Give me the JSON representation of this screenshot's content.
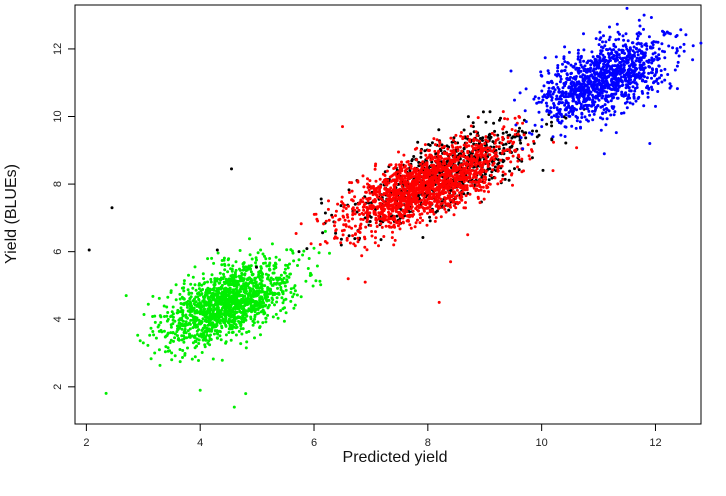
{
  "chart_data": {
    "type": "scatter",
    "title": "",
    "xlabel": "Predicted yield",
    "ylabel": "Yield (BLUEs)",
    "xlim": [
      1.8,
      12.8
    ],
    "ylim": [
      0.9,
      13.3
    ],
    "x_ticks": [
      2,
      4,
      6,
      8,
      10,
      12
    ],
    "y_ticks": [
      2,
      4,
      6,
      8,
      10,
      12
    ],
    "grid": false,
    "legend": "none",
    "series": [
      {
        "color": "#00ee00",
        "points": [
          [
            4.5,
            4.6
          ],
          [
            4.0,
            4.2
          ],
          [
            4.8,
            5.0
          ],
          [
            3.6,
            3.8
          ],
          [
            5.2,
            5.3
          ],
          [
            4.2,
            4.0
          ],
          [
            3.9,
            4.6
          ],
          [
            4.6,
            4.2
          ],
          [
            5.0,
            4.7
          ],
          [
            3.4,
            3.5
          ],
          [
            4.3,
            5.2
          ],
          [
            4.7,
            3.9
          ],
          [
            5.5,
            5.6
          ],
          [
            3.7,
            4.1
          ],
          [
            4.1,
            3.4
          ],
          [
            4.9,
            5.4
          ],
          [
            5.8,
            5.9
          ],
          [
            3.2,
            3.0
          ],
          [
            4.4,
            4.8
          ],
          [
            6.0,
            6.1
          ],
          [
            3.5,
            2.8
          ],
          [
            4.6,
            1.4
          ],
          [
            4.8,
            1.8
          ],
          [
            4.0,
            1.9
          ],
          [
            2.7,
            4.7
          ],
          [
            6.2,
            6.6
          ],
          [
            5.6,
            4.9
          ],
          [
            4.2,
            5.8
          ],
          [
            3.0,
            3.3
          ],
          [
            5.1,
            3.9
          ]
        ],
        "cluster": {
          "count": 1500,
          "mean": [
            4.5,
            4.5
          ],
          "sd": [
            0.55,
            0.6
          ],
          "corr": 0.55
        }
      },
      {
        "color": "#000000",
        "points": [
          [
            2.05,
            6.05
          ],
          [
            2.45,
            7.3
          ],
          [
            4.55,
            8.45
          ],
          [
            4.3,
            6.05
          ],
          [
            6.8,
            6.4
          ],
          [
            7.5,
            8.0
          ],
          [
            8.0,
            8.3
          ],
          [
            8.6,
            8.6
          ],
          [
            9.0,
            9.0
          ],
          [
            9.5,
            9.4
          ],
          [
            7.2,
            7.6
          ],
          [
            8.2,
            8.7
          ],
          [
            9.2,
            8.4
          ],
          [
            6.9,
            7.0
          ],
          [
            8.8,
            9.7
          ]
        ],
        "cluster": {
          "count": 700,
          "mean": [
            8.3,
            8.3
          ],
          "sd": [
            0.8,
            0.75
          ],
          "corr": 0.75
        }
      },
      {
        "color": "#ff0000",
        "points": [
          [
            8.1,
            8.2
          ],
          [
            7.6,
            7.8
          ],
          [
            8.5,
            8.4
          ],
          [
            7.9,
            8.0
          ],
          [
            8.3,
            8.6
          ],
          [
            7.2,
            7.3
          ],
          [
            8.8,
            8.7
          ],
          [
            7.4,
            7.6
          ],
          [
            9.0,
            9.2
          ],
          [
            6.8,
            7.1
          ],
          [
            8.2,
            4.5
          ],
          [
            7.4,
            6.2
          ],
          [
            6.5,
            9.7
          ],
          [
            6.9,
            5.1
          ],
          [
            8.4,
            5.7
          ],
          [
            6.2,
            6.3
          ],
          [
            9.6,
            10.0
          ],
          [
            10.2,
            8.4
          ],
          [
            6.6,
            5.2
          ],
          [
            8.7,
            6.5
          ]
        ],
        "cluster": {
          "count": 1700,
          "mean": [
            8.0,
            8.0
          ],
          "sd": [
            0.7,
            0.65
          ],
          "corr": 0.7
        }
      },
      {
        "color": "#0000ff",
        "points": [
          [
            11.0,
            11.2
          ],
          [
            10.7,
            10.9
          ],
          [
            11.3,
            11.5
          ],
          [
            10.5,
            10.6
          ],
          [
            11.6,
            11.8
          ],
          [
            10.9,
            10.4
          ],
          [
            11.2,
            12.0
          ],
          [
            10.3,
            10.1
          ],
          [
            11.8,
            11.3
          ],
          [
            10.6,
            11.4
          ],
          [
            11.5,
            13.2
          ],
          [
            11.8,
            13.0
          ],
          [
            12.4,
            11.6
          ],
          [
            10.2,
            9.4
          ],
          [
            11.9,
            9.2
          ],
          [
            11.1,
            8.9
          ],
          [
            12.0,
            10.3
          ],
          [
            10.0,
            9.7
          ]
        ],
        "cluster": {
          "count": 1200,
          "mean": [
            11.1,
            11.1
          ],
          "sd": [
            0.55,
            0.6
          ],
          "corr": 0.55
        }
      }
    ]
  }
}
